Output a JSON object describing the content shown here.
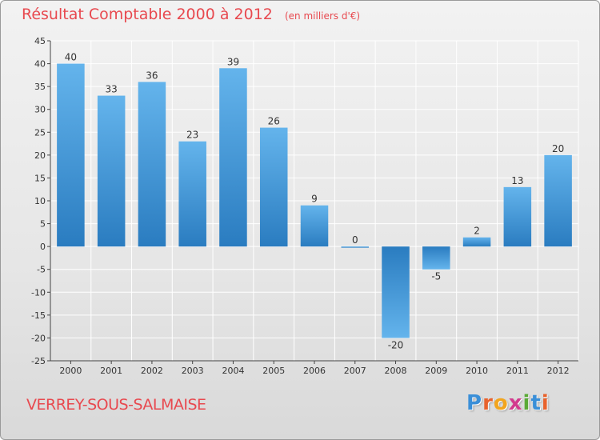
{
  "header": {
    "title": "Résultat Comptable 2000 à 2012",
    "subtitle": "(en milliers d'€)"
  },
  "footer": {
    "commune": "VERREY-SOUS-SALMAISE",
    "logo_letters": [
      "P",
      "r",
      "o",
      "x",
      "i",
      "t",
      "i"
    ],
    "logo_colors": [
      "#3a8fd8",
      "#e8622c",
      "#f2a51e",
      "#d23a8e",
      "#5aaa36",
      "#3a8fd8",
      "#e8622c"
    ]
  },
  "colors": {
    "title": "#e8494f",
    "bar_light": "#64b4ec",
    "bar_dark": "#2a7cc0",
    "axis": "#444444",
    "grid": "#ffffff"
  },
  "chart_data": {
    "type": "bar",
    "title": "Résultat Comptable 2000 à 2012",
    "subtitle": "(en milliers d'€)",
    "xlabel": "",
    "ylabel": "",
    "categories": [
      "2000",
      "2001",
      "2002",
      "2003",
      "2004",
      "2005",
      "2006",
      "2007",
      "2008",
      "2009",
      "2010",
      "2011",
      "2012"
    ],
    "values": [
      40,
      33,
      36,
      23,
      39,
      26,
      9,
      0,
      -20,
      -5,
      2,
      13,
      20
    ],
    "value_labels": [
      "40",
      "33",
      "36",
      "23",
      "39",
      "26",
      "9",
      "0",
      "-20",
      "-5",
      "2",
      "13",
      "20"
    ],
    "ylim": [
      -25,
      45
    ],
    "yticks": [
      45,
      40,
      35,
      30,
      25,
      20,
      15,
      10,
      5,
      0,
      -5,
      -10,
      -15,
      -20,
      -25
    ],
    "ytick_labels": [
      "45",
      "40",
      "35",
      "30",
      "25",
      "20",
      "15",
      "10",
      "5",
      "0",
      "-5",
      "-10",
      "-15",
      "-20",
      "-25"
    ],
    "grid": true,
    "legend": "none"
  }
}
